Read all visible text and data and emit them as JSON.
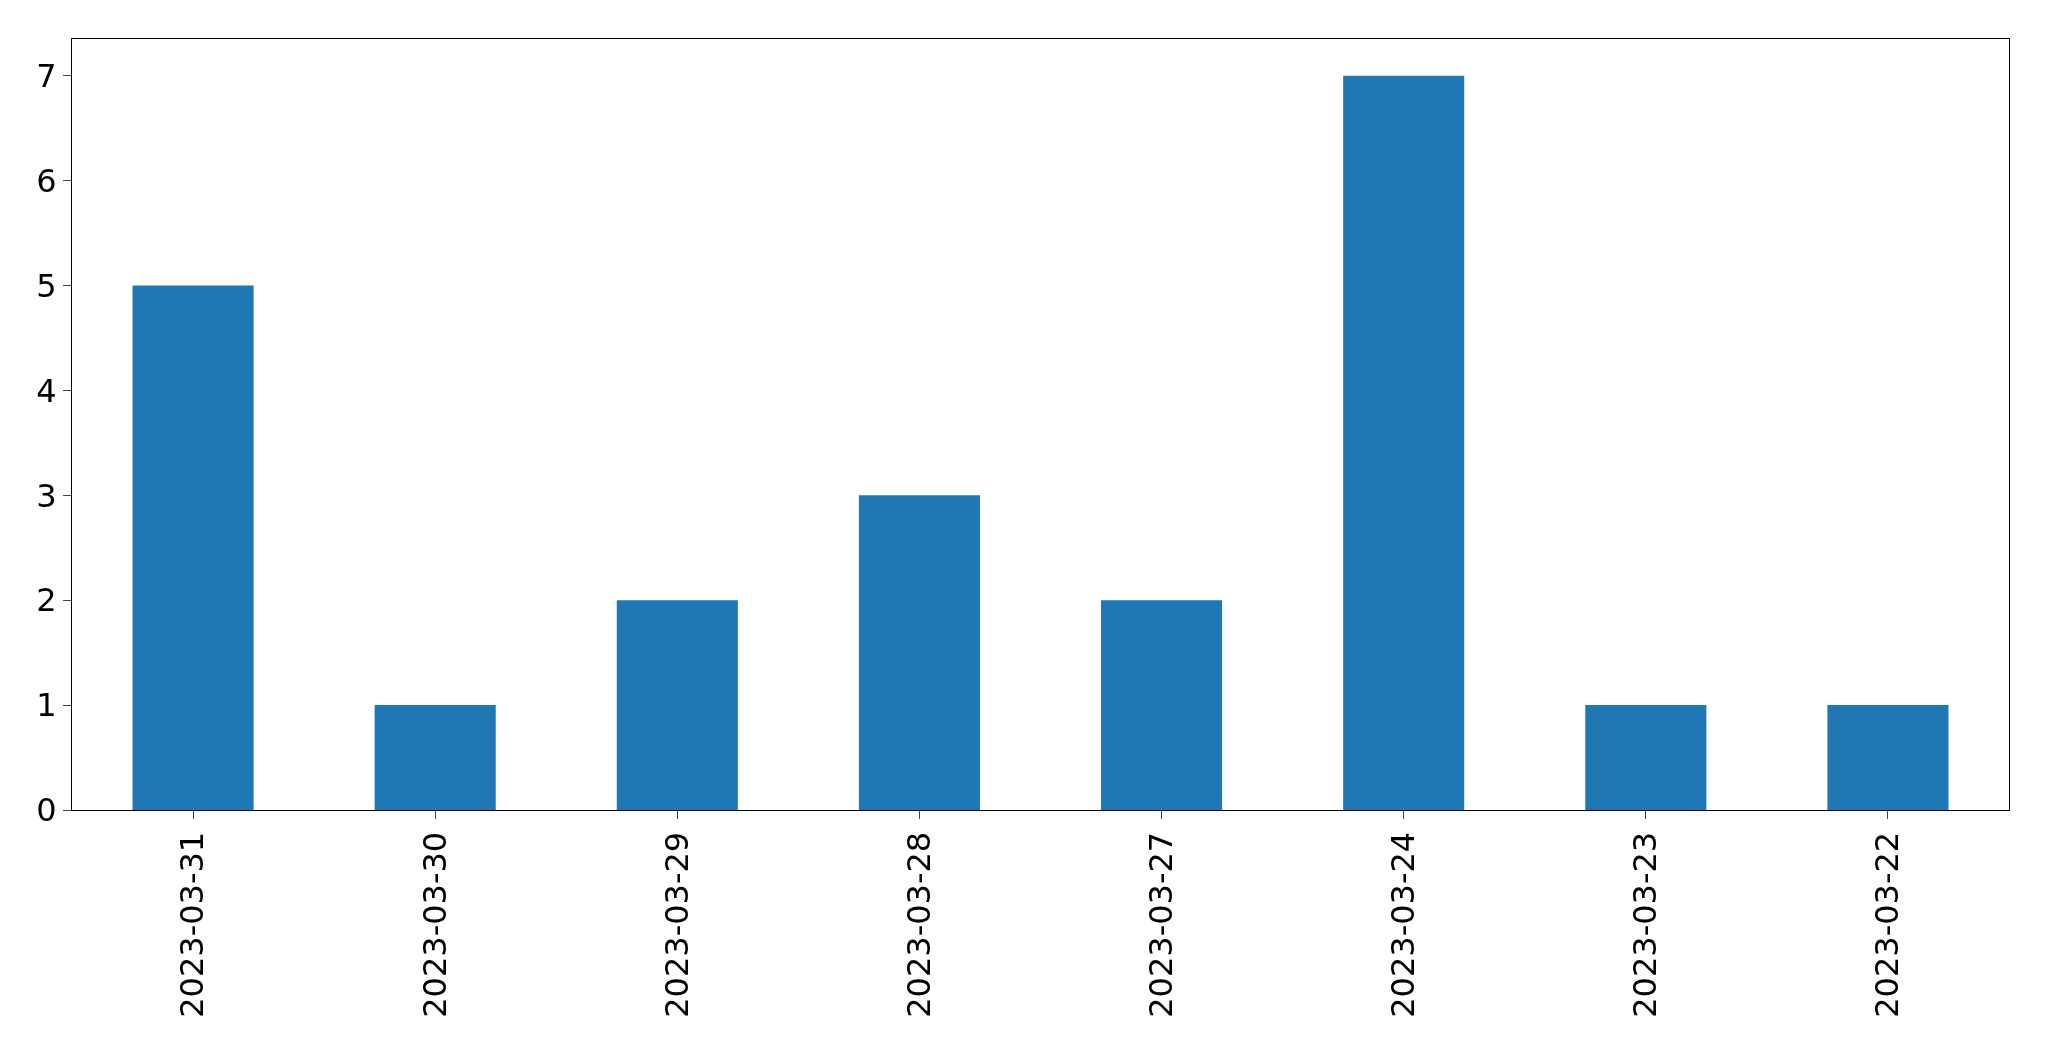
{
  "chart_data": {
    "type": "bar",
    "categories": [
      "2023-03-31",
      "2023-03-30",
      "2023-03-29",
      "2023-03-28",
      "2023-03-27",
      "2023-03-24",
      "2023-03-23",
      "2023-03-22"
    ],
    "values": [
      5,
      1,
      2,
      3,
      2,
      7,
      1,
      1
    ],
    "color": "#1f77b4",
    "ylim": [
      0,
      7.35
    ],
    "yticks": [
      0,
      1,
      2,
      3,
      4,
      5,
      6,
      7
    ]
  }
}
